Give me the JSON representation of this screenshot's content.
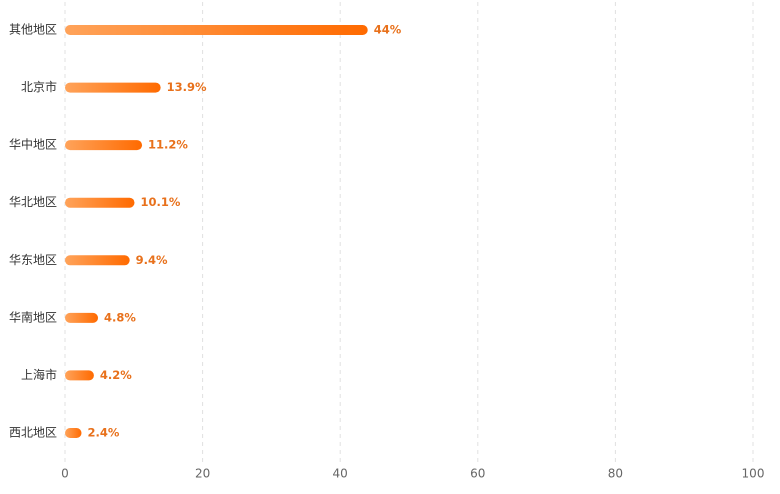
{
  "chart_data": {
    "type": "bar",
    "orientation": "horizontal",
    "categories": [
      "其他地区",
      "北京市",
      "华中地区",
      "华北地区",
      "华东地区",
      "华南地区",
      "上海市",
      "西北地区"
    ],
    "values": [
      44,
      13.9,
      11.2,
      10.1,
      9.4,
      4.8,
      4.2,
      2.4
    ],
    "value_labels": [
      "44%",
      "13.9%",
      "11.2%",
      "10.1%",
      "9.4%",
      "4.8%",
      "4.2%",
      "2.4%"
    ],
    "color": [
      "#ffa35a",
      "#ff6a00"
    ],
    "xlim": [
      0,
      100
    ],
    "xticks": [
      0,
      20,
      40,
      60,
      80,
      100
    ],
    "grid": true
  }
}
